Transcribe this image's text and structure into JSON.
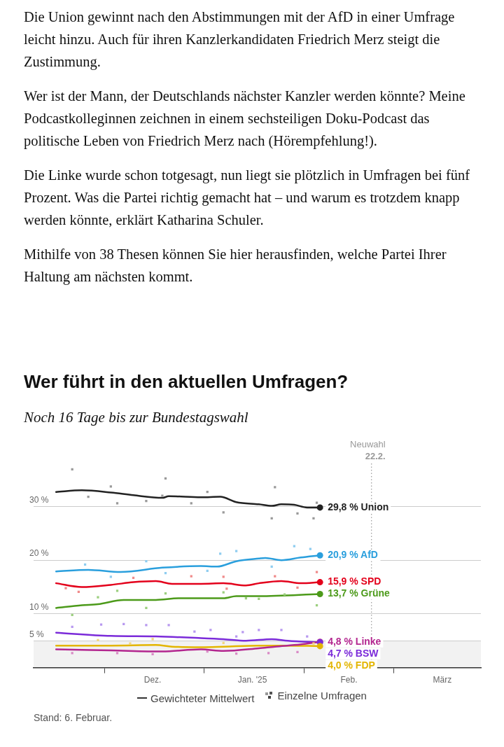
{
  "chart_data": {
    "type": "line",
    "title": "Wer führt in den aktuellen Umfragen?",
    "subtitle": "Noch 16 Tage bis zur Bundestagswahl",
    "annotations": [
      "Die Union gewinnt nach den Abstimmungen mit der AfD in einer Umfrage leicht hinzu. Auch für ihren Kanzlerkandidaten Friedrich Merz steigt die Zustimmung.",
      "Wer ist der Mann, der Deutschlands nächster Kanzler werden könnte? Meine Podcastkolleginnen zeichnen in einem sechsteiligen Doku-Podcast das politische Leben von Friedrich Merz nach (Hörempfehlung!).",
      "Die Linke wurde schon totgesagt, nun liegt sie plötzlich in Umfragen bei fünf Prozent. Was die Partei richtig gemacht hat – und warum es trotzdem knapp werden könnte, erklärt Katharina Schuler.",
      "Mithilfe von 38 Thesen können Sie hier herausfinden, welche Partei Ihrer Haltung am nächsten kommt.",
      "Gewichteter Mittelwert",
      "Einzelne Umfragen",
      "Stand: 6. Februar."
    ],
    "xlim": [
      "2024-11-09",
      "2025-03-28"
    ],
    "xticks": [
      {
        "value": "2024-12-01",
        "label": null
      },
      {
        "value": "2024-12-16",
        "label": "Dez."
      },
      {
        "value": "2025-01-01",
        "label": null
      },
      {
        "value": "2025-01-16",
        "label": "Jan. '25"
      },
      {
        "value": "2025-02-01",
        "label": null
      },
      {
        "value": "2025-02-15",
        "label": "Feb."
      },
      {
        "value": "2025-03-01",
        "label": null
      },
      {
        "value": "2025-03-16",
        "label": "März"
      }
    ],
    "ylim": [
      0,
      38
    ],
    "yticks": [
      {
        "value": 5,
        "label": "5 %"
      },
      {
        "value": 10,
        "label": "10 %"
      },
      {
        "value": 20,
        "label": "20 %"
      },
      {
        "value": 30,
        "label": "30 %"
      }
    ],
    "grid": "y",
    "marker": "none",
    "ref_lines": [
      {
        "axis": "x",
        "value": "2025-02-22",
        "label": "Neuwahl 22.2.",
        "color": "#999999",
        "line_style": "dotted"
      }
    ],
    "bands": [
      {
        "axis": "y",
        "from": 0,
        "to": 5,
        "color": "#f2f2f2"
      }
    ],
    "series": [
      {
        "type": "scatter",
        "marker": "square",
        "color": "#9a9a9a",
        "x": [
          "2024-11-21",
          "2024-12-03",
          "2024-12-20",
          "2024-12-19",
          "2024-12-05",
          "2025-01-02",
          "2025-01-07",
          "2024-12-14",
          "2024-12-28",
          "2024-11-26",
          "2025-01-23",
          "2025-01-22",
          "2025-01-30",
          "2025-02-04",
          "2025-02-05"
        ],
        "values": [
          36.9,
          33.7,
          35.2,
          32.0,
          30.6,
          32.7,
          28.9,
          31.0,
          30.6,
          31.8,
          33.6,
          27.8,
          28.7,
          27.8,
          30.7
        ]
      },
      {
        "type": "scatter",
        "marker": "square",
        "color": "#8fcdf0",
        "x": [
          "2024-11-25",
          "2024-12-14",
          "2024-12-03",
          "2024-12-20",
          "2025-01-06",
          "2025-01-11",
          "2025-01-02",
          "2025-01-29",
          "2025-01-22",
          "2025-02-03"
        ],
        "values": [
          19.2,
          19.8,
          16.9,
          17.6,
          21.2,
          21.7,
          18.0,
          22.6,
          18.8,
          22.1
        ]
      },
      {
        "type": "scatter",
        "marker": "square",
        "color": "#f08a8a",
        "x": [
          "2024-11-19",
          "2024-12-10",
          "2024-12-28",
          "2025-01-07",
          "2024-11-23",
          "2025-01-08",
          "2025-01-23",
          "2025-02-05",
          "2025-01-30"
        ],
        "values": [
          14.8,
          16.7,
          17.0,
          16.9,
          14.1,
          14.7,
          17.0,
          17.8,
          14.9
        ]
      },
      {
        "type": "scatter",
        "marker": "square",
        "color": "#9ccf7f",
        "x": [
          "2024-11-21",
          "2024-11-29",
          "2024-12-05",
          "2024-12-14",
          "2024-12-20",
          "2025-01-07",
          "2025-01-14",
          "2025-01-18",
          "2025-02-05",
          "2025-01-26"
        ],
        "values": [
          9.8,
          13.1,
          14.3,
          11.1,
          13.8,
          14.0,
          12.9,
          12.8,
          11.6,
          13.6
        ]
      },
      {
        "type": "scatter",
        "marker": "square",
        "color": "#d98ac6",
        "x": [
          "2024-11-21",
          "2024-12-05",
          "2024-12-16",
          "2025-01-11",
          "2025-01-02",
          "2025-01-21",
          "2025-01-30"
        ],
        "values": [
          2.7,
          2.7,
          2.5,
          2.6,
          3.0,
          2.7,
          2.9
        ]
      },
      {
        "type": "scatter",
        "marker": "square",
        "color": "#b899f0",
        "x": [
          "2024-11-21",
          "2024-11-30",
          "2024-12-07",
          "2024-12-14",
          "2024-12-21",
          "2024-12-29",
          "2025-01-03",
          "2025-01-11",
          "2025-01-13",
          "2025-01-18",
          "2025-01-25",
          "2025-02-02"
        ],
        "values": [
          7.6,
          8.0,
          8.1,
          7.9,
          7.9,
          6.7,
          7.0,
          5.8,
          6.6,
          7.0,
          7.0,
          5.8
        ]
      },
      {
        "type": "scatter",
        "marker": "square",
        "color": "#f0d67f",
        "x": [
          "2024-11-29",
          "2024-12-16",
          "2024-12-09",
          "2025-01-07",
          "2025-02-04"
        ],
        "values": [
          5.1,
          5.3,
          4.5,
          4.6,
          4.5
        ]
      },
      {
        "name": "Union",
        "color": "#222222",
        "x": [
          "2024-11-16",
          "2024-11-24",
          "2024-12-03",
          "2024-12-10",
          "2024-12-19",
          "2024-12-21",
          "2024-12-31",
          "2025-01-06",
          "2025-01-11",
          "2025-01-18",
          "2025-01-22",
          "2025-01-25",
          "2025-01-29",
          "2025-02-02",
          "2025-02-06"
        ],
        "values": [
          32.7,
          33.0,
          32.6,
          32.1,
          31.6,
          31.9,
          31.7,
          31.8,
          30.8,
          30.4,
          30.1,
          30.4,
          30.3,
          29.8,
          29.8
        ],
        "value_labels": [
          null,
          null,
          null,
          null,
          null,
          null,
          null,
          null,
          null,
          null,
          null,
          null,
          null,
          null,
          "29,8 %"
        ]
      },
      {
        "name": "AfD",
        "color": "#2a9fdd",
        "x": [
          "2024-11-16",
          "2024-11-26",
          "2024-12-06",
          "2024-12-19",
          "2024-12-31",
          "2025-01-05",
          "2025-01-11",
          "2025-01-18",
          "2025-01-20",
          "2025-01-25",
          "2025-01-31",
          "2025-02-06"
        ],
        "values": [
          17.9,
          18.2,
          17.8,
          18.6,
          18.9,
          18.8,
          19.8,
          20.3,
          20.4,
          20.0,
          20.5,
          20.9
        ],
        "value_labels": [
          null,
          null,
          null,
          null,
          null,
          null,
          null,
          null,
          null,
          null,
          null,
          "20,9 %"
        ]
      },
      {
        "name": "SPD",
        "color": "#e3001b",
        "x": [
          "2024-11-16",
          "2024-11-24",
          "2024-12-03",
          "2024-12-10",
          "2024-12-17",
          "2024-12-22",
          "2024-12-31",
          "2025-01-07",
          "2025-01-14",
          "2025-01-18",
          "2025-01-25",
          "2025-01-31",
          "2025-02-06"
        ],
        "values": [
          15.7,
          15.0,
          15.4,
          15.9,
          16.1,
          15.6,
          15.6,
          15.7,
          15.3,
          15.7,
          16.1,
          15.7,
          15.9
        ],
        "value_labels": [
          null,
          null,
          null,
          null,
          null,
          null,
          null,
          null,
          null,
          null,
          null,
          null,
          "15,9 %"
        ]
      },
      {
        "name": "Grüne",
        "color": "#4c9a1a",
        "x": [
          "2024-11-16",
          "2024-11-24",
          "2024-11-29",
          "2024-12-07",
          "2024-12-17",
          "2024-12-24",
          "2025-01-07",
          "2025-01-11",
          "2025-01-18",
          "2025-02-06"
        ],
        "values": [
          11.1,
          11.6,
          11.8,
          12.6,
          12.6,
          12.9,
          12.9,
          13.3,
          13.3,
          13.7
        ],
        "value_labels": [
          null,
          null,
          null,
          null,
          null,
          null,
          null,
          null,
          null,
          "13,7 %"
        ]
      },
      {
        "name": "Linke",
        "color": "#b3268f",
        "x": [
          "2024-11-16",
          "2024-12-03",
          "2024-12-19",
          "2024-12-31",
          "2025-01-07",
          "2025-01-18",
          "2025-01-23",
          "2025-01-31",
          "2025-02-06"
        ],
        "values": [
          3.4,
          3.2,
          3.0,
          3.4,
          3.1,
          3.6,
          3.9,
          4.3,
          4.8
        ],
        "value_labels": [
          null,
          null,
          null,
          null,
          null,
          null,
          null,
          null,
          "4,8 %"
        ]
      },
      {
        "name": "BSW",
        "color": "#7b2bd9",
        "x": [
          "2024-11-16",
          "2024-12-03",
          "2024-12-17",
          "2024-12-31",
          "2025-01-07",
          "2025-01-14",
          "2025-01-22",
          "2025-01-27",
          "2025-02-06"
        ],
        "values": [
          6.5,
          5.9,
          5.8,
          5.5,
          5.3,
          5.0,
          5.3,
          5.0,
          4.7
        ],
        "value_labels": [
          null,
          null,
          null,
          null,
          null,
          null,
          null,
          null,
          "4,7 %"
        ]
      },
      {
        "name": "FDP",
        "color": "#e3b500",
        "x": [
          "2024-11-16",
          "2024-12-03",
          "2024-12-17",
          "2024-12-22",
          "2024-12-31",
          "2025-01-07",
          "2025-01-18",
          "2025-01-25",
          "2025-02-06"
        ],
        "values": [
          4.1,
          4.1,
          4.2,
          3.9,
          3.8,
          3.9,
          4.1,
          4.1,
          4.0
        ],
        "value_labels": [
          null,
          null,
          null,
          null,
          null,
          null,
          null,
          null,
          "4,0 %"
        ]
      }
    ]
  }
}
